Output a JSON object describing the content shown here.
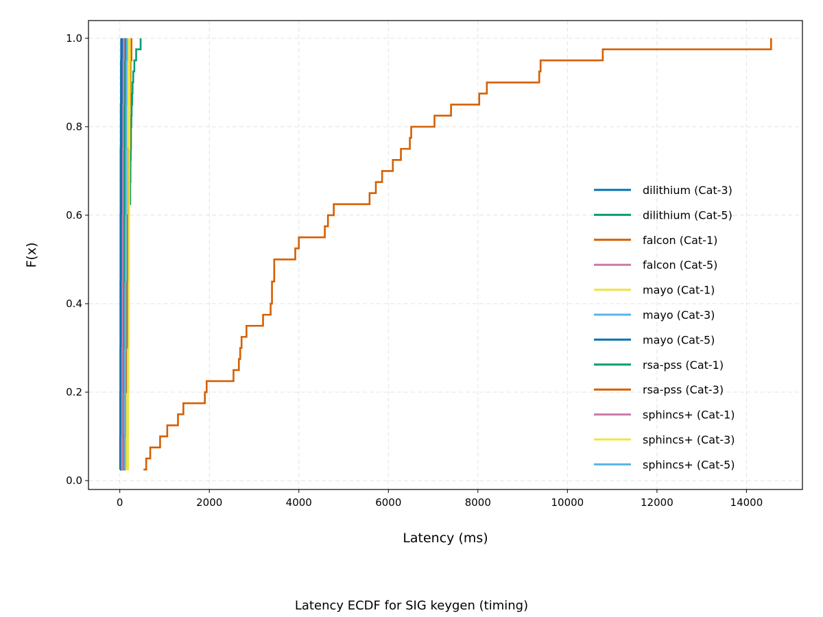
{
  "caption": "Latency ECDF for SIG keygen (timing)",
  "chart_data": {
    "type": "line",
    "subtype": "ecdf-step",
    "title": "",
    "xlabel": "Latency (ms)",
    "ylabel": "F(x)",
    "xlim": [
      -700,
      15250
    ],
    "ylim": [
      -0.02,
      1.04
    ],
    "xticks": [
      0,
      2000,
      4000,
      6000,
      8000,
      10000,
      12000,
      14000
    ],
    "yticks": [
      0.0,
      0.2,
      0.4,
      0.6,
      0.8,
      1.0
    ],
    "xtick_labels": [
      "0",
      "2000",
      "4000",
      "6000",
      "8000",
      "10000",
      "12000",
      "14000"
    ],
    "ytick_labels": [
      "0.0",
      "0.2",
      "0.4",
      "0.6",
      "0.8",
      "1.0"
    ],
    "grid": true,
    "legend_position": "center-right",
    "series": [
      {
        "name": "dilithium (Cat-3)",
        "color": "#0072B2",
        "x": [
          5,
          8,
          10,
          12,
          14,
          16,
          18,
          22,
          26,
          30
        ],
        "y": [
          0.025,
          0.1,
          0.2,
          0.3,
          0.45,
          0.6,
          0.75,
          0.85,
          0.95,
          1.0
        ]
      },
      {
        "name": "dilithium (Cat-5)",
        "color": "#009E73",
        "x": [
          230,
          232,
          238,
          244,
          250,
          258,
          265,
          275,
          285,
          300,
          325,
          345,
          365,
          400,
          430,
          465
        ],
        "y": [
          0.625,
          0.675,
          0.725,
          0.75,
          0.8,
          0.825,
          0.85,
          0.875,
          0.9,
          0.925,
          0.95,
          0.95,
          0.975,
          0.975,
          0.975,
          1.0
        ]
      },
      {
        "name": "falcon (Cat-1)",
        "color": "#D55E00",
        "x": [
          530,
          590,
          680,
          900,
          1060,
          1300,
          1420,
          1900,
          1940,
          2540,
          2660,
          2690,
          2720,
          2830,
          3200,
          3370,
          3400,
          3450,
          3920,
          4000,
          4580,
          4650,
          4780,
          5580,
          5720,
          5860,
          6100,
          6280,
          6480,
          6510,
          7030,
          7400,
          8030,
          8200,
          9370,
          9400,
          10790,
          14550
        ],
        "y": [
          0.025,
          0.05,
          0.075,
          0.1,
          0.125,
          0.15,
          0.175,
          0.2,
          0.225,
          0.25,
          0.275,
          0.3,
          0.325,
          0.35,
          0.375,
          0.4,
          0.45,
          0.5,
          0.525,
          0.55,
          0.575,
          0.6,
          0.625,
          0.65,
          0.675,
          0.7,
          0.725,
          0.75,
          0.775,
          0.8,
          0.825,
          0.85,
          0.875,
          0.9,
          0.925,
          0.95,
          0.975,
          1.0
        ]
      },
      {
        "name": "falcon (Cat-5)",
        "color": "#CC79A7",
        "x": [
          70,
          75,
          80,
          85,
          90,
          95,
          100,
          105,
          110,
          120
        ],
        "y": [
          0.025,
          0.1,
          0.2,
          0.3,
          0.45,
          0.6,
          0.75,
          0.85,
          0.95,
          1.0
        ]
      },
      {
        "name": "mayo (Cat-1)",
        "color": "#F0E442",
        "x": [
          150,
          155,
          160,
          165,
          170,
          175,
          180,
          185,
          190,
          200
        ],
        "y": [
          0.025,
          0.1,
          0.2,
          0.3,
          0.45,
          0.6,
          0.75,
          0.85,
          0.95,
          1.0
        ]
      },
      {
        "name": "mayo (Cat-3)",
        "color": "#56B4E9",
        "x": [
          100,
          105,
          110,
          115,
          120,
          125,
          130,
          135,
          140,
          150
        ],
        "y": [
          0.025,
          0.1,
          0.2,
          0.3,
          0.45,
          0.6,
          0.75,
          0.85,
          0.95,
          1.0
        ]
      },
      {
        "name": "mayo (Cat-5)",
        "color": "#0072B2",
        "x": [
          20,
          25,
          30,
          35,
          40,
          45,
          50,
          55,
          60,
          65
        ],
        "y": [
          0.025,
          0.1,
          0.2,
          0.3,
          0.45,
          0.6,
          0.75,
          0.85,
          0.95,
          1.0
        ]
      },
      {
        "name": "rsa-pss (Cat-1)",
        "color": "#009E73",
        "x": [
          30,
          45,
          60,
          70,
          80,
          90,
          100,
          110,
          120,
          130
        ],
        "y": [
          0.025,
          0.1,
          0.2,
          0.3,
          0.45,
          0.6,
          0.75,
          0.85,
          0.95,
          1.0
        ]
      },
      {
        "name": "rsa-pss (Cat-3)",
        "color": "#D55E00",
        "x": [
          80,
          100,
          120,
          140,
          160,
          180,
          200,
          220,
          240,
          260
        ],
        "y": [
          0.025,
          0.1,
          0.2,
          0.3,
          0.45,
          0.6,
          0.75,
          0.85,
          0.95,
          1.0
        ]
      },
      {
        "name": "sphincs+ (Cat-1)",
        "color": "#CC79A7",
        "x": [
          40,
          45,
          50,
          55,
          60,
          65,
          70,
          75,
          80,
          85
        ],
        "y": [
          0.025,
          0.1,
          0.2,
          0.3,
          0.45,
          0.6,
          0.75,
          0.85,
          0.95,
          1.0
        ]
      },
      {
        "name": "sphincs+ (Cat-3)",
        "color": "#F0E442",
        "x": [
          180,
          185,
          190,
          195,
          200,
          205,
          210,
          215,
          220,
          225
        ],
        "y": [
          0.025,
          0.1,
          0.2,
          0.3,
          0.45,
          0.6,
          0.75,
          0.85,
          0.95,
          1.0
        ]
      },
      {
        "name": "sphincs+ (Cat-5)",
        "color": "#56B4E9",
        "x": [
          110,
          115,
          120,
          125,
          130,
          135,
          140,
          145,
          150,
          160
        ],
        "y": [
          0.025,
          0.1,
          0.2,
          0.3,
          0.45,
          0.6,
          0.75,
          0.85,
          0.95,
          1.0
        ]
      }
    ]
  }
}
